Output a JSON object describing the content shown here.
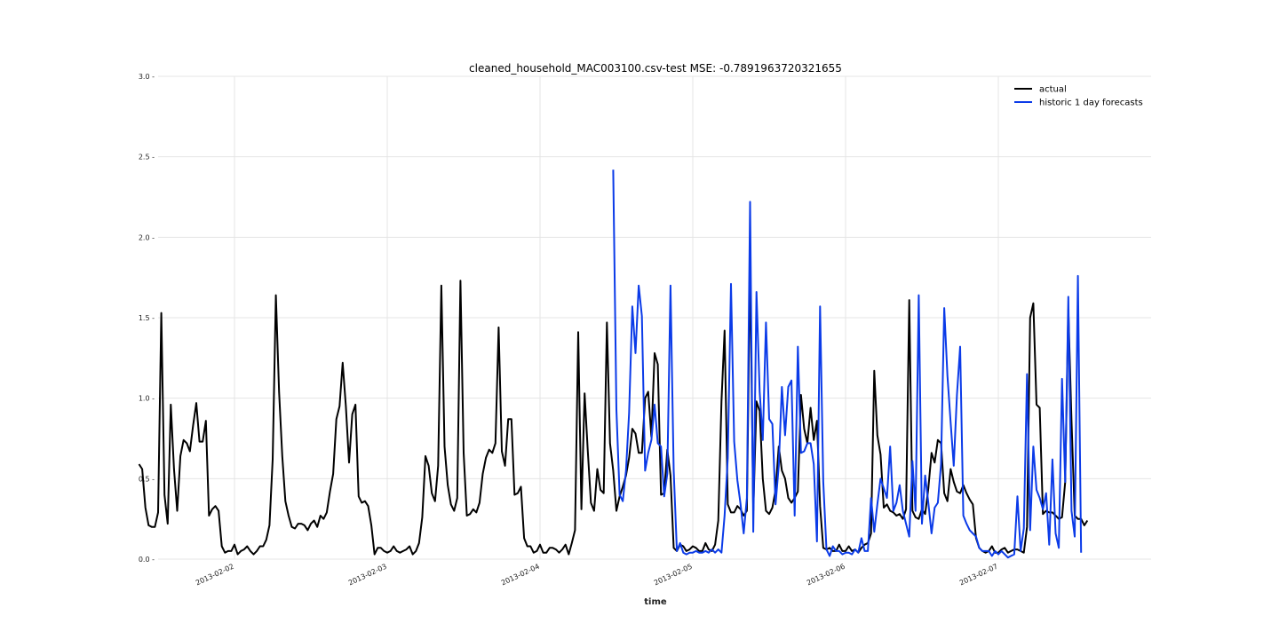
{
  "chart_data": {
    "type": "line",
    "title": "cleaned_household_MAC003100.csv-test MSE: -0.7891963720321655",
    "xlabel": "time",
    "ylabel": "",
    "ylim": [
      0.0,
      3.0
    ],
    "yticks": [
      "0.0",
      "0.5",
      "1.0",
      "1.5",
      "2.0",
      "2.5",
      "3.0"
    ],
    "xlim": [
      "2013-02-01T12:00",
      "2013-02-08T00:00"
    ],
    "xticks": [
      "2013-02-02",
      "2013-02-03",
      "2013-02-04",
      "2013-02-05",
      "2013-02-06",
      "2013-02-07"
    ],
    "grid": true,
    "legend_position": "top-right",
    "series": [
      {
        "name": "actual",
        "color": "#000000",
        "start": "2013-02-01T09:00",
        "interval_minutes": 30,
        "values": [
          0.59,
          0.56,
          0.32,
          0.21,
          0.2,
          0.2,
          0.29,
          1.53,
          0.4,
          0.22,
          0.96,
          0.56,
          0.3,
          0.64,
          0.74,
          0.72,
          0.67,
          0.83,
          0.97,
          0.73,
          0.73,
          0.86,
          0.27,
          0.31,
          0.33,
          0.3,
          0.08,
          0.04,
          0.05,
          0.05,
          0.09,
          0.03,
          0.05,
          0.06,
          0.08,
          0.05,
          0.03,
          0.05,
          0.08,
          0.08,
          0.12,
          0.21,
          0.62,
          1.64,
          1.04,
          0.64,
          0.36,
          0.27,
          0.2,
          0.19,
          0.22,
          0.22,
          0.21,
          0.18,
          0.22,
          0.24,
          0.2,
          0.27,
          0.25,
          0.29,
          0.42,
          0.53,
          0.87,
          0.95,
          1.22,
          0.95,
          0.6,
          0.9,
          0.96,
          0.39,
          0.35,
          0.36,
          0.33,
          0.21,
          0.03,
          0.07,
          0.07,
          0.05,
          0.04,
          0.05,
          0.08,
          0.05,
          0.04,
          0.05,
          0.06,
          0.08,
          0.03,
          0.05,
          0.1,
          0.26,
          0.64,
          0.58,
          0.41,
          0.36,
          0.58,
          1.7,
          0.7,
          0.46,
          0.34,
          0.3,
          0.38,
          1.73,
          0.66,
          0.27,
          0.28,
          0.31,
          0.29,
          0.35,
          0.53,
          0.63,
          0.68,
          0.66,
          0.72,
          1.44,
          0.67,
          0.58,
          0.87,
          0.87,
          0.4,
          0.41,
          0.45,
          0.13,
          0.08,
          0.08,
          0.04,
          0.05,
          0.09,
          0.04,
          0.04,
          0.07,
          0.07,
          0.06,
          0.04,
          0.06,
          0.09,
          0.03,
          0.1,
          0.18,
          1.41,
          0.31,
          1.03,
          0.67,
          0.35,
          0.3,
          0.56,
          0.43,
          0.41,
          1.47,
          0.72,
          0.55,
          0.3,
          0.39,
          0.45,
          0.52,
          0.63,
          0.81,
          0.78,
          0.66,
          0.66,
          1.0,
          1.04,
          0.76,
          1.28,
          1.21,
          0.4,
          0.41,
          0.68,
          0.52,
          0.07,
          0.05,
          0.09,
          0.08,
          0.05,
          0.06,
          0.08,
          0.07,
          0.05,
          0.05,
          0.1,
          0.06,
          0.05,
          0.09,
          0.24,
          0.98,
          1.42,
          0.34,
          0.29,
          0.29,
          0.33,
          0.31,
          0.27,
          0.3,
          1.86,
          0.3,
          0.98,
          0.92,
          0.5,
          0.3,
          0.28,
          0.32,
          0.43,
          0.7,
          0.55,
          0.5,
          0.38,
          0.35,
          0.38,
          0.42,
          1.02,
          0.81,
          0.72,
          0.94,
          0.74,
          0.86,
          0.33,
          0.07,
          0.06,
          0.07,
          0.05,
          0.05,
          0.09,
          0.05,
          0.05,
          0.08,
          0.05,
          0.06,
          0.04,
          0.07,
          0.09,
          0.1,
          0.16,
          1.17,
          0.77,
          0.65,
          0.32,
          0.34,
          0.3,
          0.29,
          0.27,
          0.28,
          0.25,
          0.31,
          1.61,
          0.3,
          0.26,
          0.25,
          0.31,
          0.28,
          0.44,
          0.66,
          0.6,
          0.74,
          0.72,
          0.41,
          0.36,
          0.56,
          0.48,
          0.42,
          0.41,
          0.46,
          0.41,
          0.37,
          0.34,
          0.13,
          0.07,
          0.05,
          0.04,
          0.05,
          0.08,
          0.04,
          0.04,
          0.06,
          0.07,
          0.04,
          0.05,
          0.06,
          0.06,
          0.05,
          0.04,
          0.2,
          1.5,
          1.59,
          0.96,
          0.94,
          0.28,
          0.3,
          0.29,
          0.29,
          0.27,
          0.25,
          0.26,
          0.48,
          1.55,
          0.86,
          0.27,
          0.25,
          0.25,
          0.21,
          0.24
        ]
      },
      {
        "name": "historic 1 day forecasts",
        "color": "#0b3be8",
        "start": "2013-02-04T11:30",
        "interval_minutes": 30,
        "values": [
          2.42,
          0.93,
          0.4,
          0.36,
          0.55,
          0.91,
          1.57,
          1.28,
          1.7,
          1.51,
          0.55,
          0.66,
          0.74,
          0.96,
          0.72,
          0.7,
          0.39,
          0.53,
          1.7,
          0.55,
          0.05,
          0.1,
          0.04,
          0.03,
          0.04,
          0.04,
          0.05,
          0.04,
          0.04,
          0.05,
          0.04,
          0.06,
          0.04,
          0.06,
          0.04,
          0.27,
          0.63,
          1.71,
          0.73,
          0.49,
          0.34,
          0.16,
          0.38,
          2.22,
          0.17,
          1.66,
          1.04,
          0.74,
          1.47,
          0.87,
          0.84,
          0.34,
          0.58,
          1.07,
          0.77,
          1.07,
          1.11,
          0.27,
          1.32,
          0.66,
          0.67,
          0.72,
          0.72,
          0.59,
          0.11,
          1.57,
          0.48,
          0.06,
          0.02,
          0.08,
          0.05,
          0.05,
          0.03,
          0.04,
          0.04,
          0.03,
          0.06,
          0.04,
          0.13,
          0.05,
          0.05,
          0.38,
          0.17,
          0.34,
          0.5,
          0.44,
          0.38,
          0.7,
          0.3,
          0.35,
          0.46,
          0.3,
          0.22,
          0.14,
          0.61,
          0.3,
          1.64,
          0.22,
          0.52,
          0.35,
          0.16,
          0.32,
          0.35,
          0.59,
          1.56,
          1.14,
          0.85,
          0.58,
          1.02,
          1.32,
          0.27,
          0.22,
          0.18,
          0.16,
          0.14,
          0.07,
          0.05,
          0.05,
          0.05,
          0.02,
          0.05,
          0.03,
          0.05,
          0.03,
          0.01,
          0.02,
          0.03,
          0.39,
          0.05,
          0.19,
          1.15,
          0.18,
          0.7,
          0.43,
          0.38,
          0.31,
          0.41,
          0.09,
          0.62,
          0.16,
          0.07,
          1.12,
          0.48,
          1.63,
          0.3,
          0.14,
          1.76,
          0.04
        ]
      }
    ]
  }
}
